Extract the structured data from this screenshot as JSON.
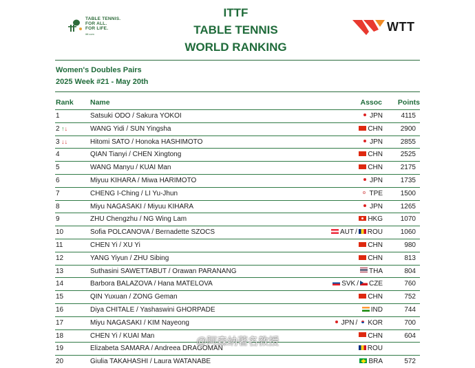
{
  "header": {
    "ittf_slogan": "TABLE TENNIS.\nFOR ALL.\nFOR LIFE.",
    "ittf_url": "ittf.com",
    "title_line1": "ITTF",
    "title_line2": "TABLE TENNIS",
    "title_line3": "WORLD RANKING",
    "wtt_logo_text": "WTT",
    "brand_green": "#1f6b3a",
    "wtt_red": "#e8392f"
  },
  "subtitle": {
    "category": "Women's Doubles Pairs",
    "week": "2025 Week #21 - May 20th"
  },
  "table": {
    "headers": {
      "rank": "Rank",
      "name": "Name",
      "assoc": "Assoc",
      "points": "Points"
    },
    "rows": [
      {
        "rank": "1",
        "change_icon": "",
        "name": "Satsuki ODO / Sakura YOKOI",
        "assoc": [
          {
            "flag": "jpn",
            "code": "JPN"
          }
        ],
        "points": "4115"
      },
      {
        "rank": "2",
        "change_icon": "up-down-arrows-icon",
        "change_dir": "up",
        "name": "WANG Yidi / SUN Yingsha",
        "assoc": [
          {
            "flag": "chn",
            "code": "CHN"
          }
        ],
        "points": "2900"
      },
      {
        "rank": "3",
        "change_icon": "up-down-arrows-icon",
        "change_dir": "down",
        "name": "Hitomi SATO / Honoka HASHIMOTO",
        "assoc": [
          {
            "flag": "jpn",
            "code": "JPN"
          }
        ],
        "points": "2855"
      },
      {
        "rank": "4",
        "change_icon": "",
        "name": "QIAN Tianyi / CHEN Xingtong",
        "assoc": [
          {
            "flag": "chn",
            "code": "CHN"
          }
        ],
        "points": "2525"
      },
      {
        "rank": "5",
        "change_icon": "",
        "name": "WANG Manyu / KUAI Man",
        "assoc": [
          {
            "flag": "chn",
            "code": "CHN"
          }
        ],
        "points": "2175"
      },
      {
        "rank": "6",
        "change_icon": "",
        "name": "Miyuu KIHARA / Miwa HARIMOTO",
        "assoc": [
          {
            "flag": "jpn",
            "code": "JPN"
          }
        ],
        "points": "1735"
      },
      {
        "rank": "7",
        "change_icon": "",
        "name": "CHENG I-Ching / LI Yu-Jhun",
        "assoc": [
          {
            "flag": "tpe",
            "code": "TPE"
          }
        ],
        "points": "1500"
      },
      {
        "rank": "8",
        "change_icon": "",
        "name": "Miyu NAGASAKI / Miyuu KIHARA",
        "assoc": [
          {
            "flag": "jpn",
            "code": "JPN"
          }
        ],
        "points": "1265"
      },
      {
        "rank": "9",
        "change_icon": "",
        "name": "ZHU Chengzhu / NG Wing Lam",
        "assoc": [
          {
            "flag": "hkg",
            "code": "HKG"
          }
        ],
        "points": "1070"
      },
      {
        "rank": "10",
        "change_icon": "",
        "name": "Sofia POLCANOVA / Bernadette SZOCS",
        "assoc": [
          {
            "flag": "aut",
            "code": "AUT"
          },
          {
            "flag": "rou",
            "code": "ROU"
          }
        ],
        "points": "1060"
      },
      {
        "rank": "11",
        "change_icon": "",
        "name": "CHEN Yi / XU Yi",
        "assoc": [
          {
            "flag": "chn",
            "code": "CHN"
          }
        ],
        "points": "980"
      },
      {
        "rank": "12",
        "change_icon": "",
        "name": "YANG Yiyun / ZHU Sibing",
        "assoc": [
          {
            "flag": "chn",
            "code": "CHN"
          }
        ],
        "points": "813"
      },
      {
        "rank": "13",
        "change_icon": "",
        "name": "Suthasini SAWETTABUT / Orawan PARANANG",
        "assoc": [
          {
            "flag": "tha",
            "code": "THA"
          }
        ],
        "points": "804"
      },
      {
        "rank": "14",
        "change_icon": "",
        "name": "Barbora BALAZOVA / Hana MATELOVA",
        "assoc": [
          {
            "flag": "svk",
            "code": "SVK"
          },
          {
            "flag": "cze",
            "code": "CZE"
          }
        ],
        "points": "760"
      },
      {
        "rank": "15",
        "change_icon": "",
        "name": "QIN Yuxuan / ZONG Geman",
        "assoc": [
          {
            "flag": "chn",
            "code": "CHN"
          }
        ],
        "points": "752"
      },
      {
        "rank": "16",
        "change_icon": "",
        "name": "Diya CHITALE / Yashaswini GHORPADE",
        "assoc": [
          {
            "flag": "ind",
            "code": "IND"
          }
        ],
        "points": "744"
      },
      {
        "rank": "17",
        "change_icon": "",
        "name": "Miyu NAGASAKI / KIM Nayeong",
        "assoc": [
          {
            "flag": "jpn",
            "code": "JPN"
          },
          {
            "flag": "kor",
            "code": "KOR"
          }
        ],
        "points": "700"
      },
      {
        "rank": "18",
        "change_icon": "",
        "name": "CHEN Yi / KUAI Man",
        "assoc": [
          {
            "flag": "chn",
            "code": "CHN"
          }
        ],
        "points": "604"
      },
      {
        "rank": "19",
        "change_icon": "",
        "name": "Elizabeta SAMARA / Andreea DRAGOMAN",
        "assoc": [
          {
            "flag": "rou",
            "code": "ROU"
          }
        ],
        "points": ""
      },
      {
        "rank": "20",
        "change_icon": "",
        "name": "Giulia TAKAHASHI / Laura WATANABE",
        "assoc": [
          {
            "flag": "bra",
            "code": "BRA"
          }
        ],
        "points": "572"
      }
    ]
  },
  "watermark": {
    "text": "@阿森纳著名教授"
  }
}
